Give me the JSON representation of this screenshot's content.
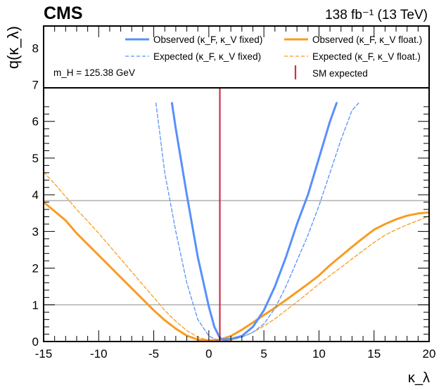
{
  "chart_data": {
    "type": "line",
    "experiment": "CMS",
    "luminosity": "138 fb⁻¹ (13 TeV)",
    "annotation": "m_H = 125.38 GeV",
    "xlabel": "κ_λ",
    "ylabel": "q(κ_λ)",
    "xlim": [
      -15,
      20
    ],
    "ylim": [
      0,
      8.6
    ],
    "xticks": [
      -15,
      -10,
      -5,
      0,
      5,
      10,
      15,
      20
    ],
    "yticks": [
      0,
      1,
      2,
      3,
      4,
      5,
      6,
      7,
      8
    ],
    "grid": false,
    "reference_lines_y": [
      1.0,
      3.84
    ],
    "sm_kappa_lambda": 1.0,
    "legend": {
      "placement": "top",
      "entries": [
        {
          "key": "obs_fixed",
          "label": "Observed (κ_F, κ_V fixed)"
        },
        {
          "key": "exp_fixed",
          "label": "Expected (κ_F, κ_V fixed)"
        },
        {
          "key": "obs_float",
          "label": "Observed (κ_F, κ_V float.)"
        },
        {
          "key": "exp_float",
          "label": "Expected (κ_F, κ_V float.)"
        },
        {
          "key": "sm",
          "label": "SM expected"
        }
      ]
    },
    "colors": {
      "obs_fixed": "#5790fc",
      "exp_fixed": "#5790fc",
      "obs_float": "#f89c20",
      "exp_float": "#f89c20",
      "sm": "#c8324b",
      "reference": "#b0b0b0"
    },
    "series": [
      {
        "name": "Observed (κ_F, κ_V fixed)",
        "key": "obs_fixed",
        "style": "solid",
        "x": [
          -3.35,
          -3.0,
          -2.0,
          -1.0,
          0.0,
          0.5,
          1.0,
          1.3,
          2.0,
          3.0,
          4.0,
          5.0,
          6.0,
          7.0,
          8.0,
          9.0,
          10.0,
          11.0,
          11.6
        ],
        "y": [
          6.5,
          5.8,
          4.0,
          2.3,
          0.95,
          0.4,
          0.1,
          0.05,
          0.07,
          0.15,
          0.4,
          0.85,
          1.5,
          2.3,
          3.2,
          4.0,
          5.0,
          6.0,
          6.5
        ]
      },
      {
        "name": "Expected (κ_F, κ_V fixed)",
        "key": "exp_fixed",
        "style": "dashed",
        "x": [
          -4.8,
          -4.0,
          -3.0,
          -2.0,
          -1.0,
          0.0,
          1.0,
          2.0,
          3.0,
          4.0,
          5.0,
          6.0,
          7.0,
          8.0,
          9.0,
          10.0,
          11.0,
          12.0,
          13.0,
          13.6
        ],
        "y": [
          6.5,
          4.6,
          3.0,
          1.6,
          0.6,
          0.15,
          0.0,
          0.05,
          0.12,
          0.25,
          0.48,
          0.9,
          1.5,
          2.2,
          2.9,
          3.7,
          4.6,
          5.5,
          6.3,
          6.5
        ]
      },
      {
        "name": "Observed (κ_F, κ_V float.)",
        "key": "obs_float",
        "style": "solid",
        "x": [
          -15,
          -14,
          -13,
          -12,
          -11,
          -10,
          -9,
          -8,
          -7,
          -6,
          -5,
          -4,
          -3,
          -2,
          -1,
          0,
          1,
          2,
          3,
          4,
          5,
          6,
          7,
          8,
          9,
          10,
          11,
          12,
          13,
          14,
          15,
          16,
          17,
          18,
          19,
          20
        ],
        "y": [
          3.8,
          3.55,
          3.3,
          2.95,
          2.65,
          2.35,
          2.05,
          1.75,
          1.45,
          1.15,
          0.85,
          0.58,
          0.35,
          0.16,
          0.05,
          0.03,
          0.05,
          0.15,
          0.32,
          0.52,
          0.72,
          0.92,
          1.13,
          1.35,
          1.57,
          1.8,
          2.08,
          2.33,
          2.58,
          2.82,
          3.05,
          3.2,
          3.33,
          3.43,
          3.49,
          3.52
        ]
      },
      {
        "name": "Expected (κ_F, κ_V float.)",
        "key": "exp_float",
        "style": "dashed",
        "x": [
          -15,
          -14,
          -13,
          -12,
          -11,
          -10,
          -9,
          -8,
          -7,
          -6,
          -5,
          -4,
          -3,
          -2,
          -1,
          0,
          1,
          2,
          3,
          4,
          5,
          6,
          7,
          8,
          9,
          10,
          11,
          12,
          13,
          14,
          15,
          16,
          17,
          18,
          19,
          20
        ],
        "y": [
          4.62,
          4.3,
          3.95,
          3.6,
          3.28,
          2.95,
          2.6,
          2.25,
          1.9,
          1.55,
          1.2,
          0.85,
          0.55,
          0.3,
          0.12,
          0.03,
          0.0,
          0.03,
          0.12,
          0.25,
          0.42,
          0.62,
          0.85,
          1.08,
          1.32,
          1.57,
          1.8,
          2.02,
          2.25,
          2.48,
          2.7,
          2.9,
          3.05,
          3.18,
          3.3,
          3.42
        ]
      }
    ]
  }
}
